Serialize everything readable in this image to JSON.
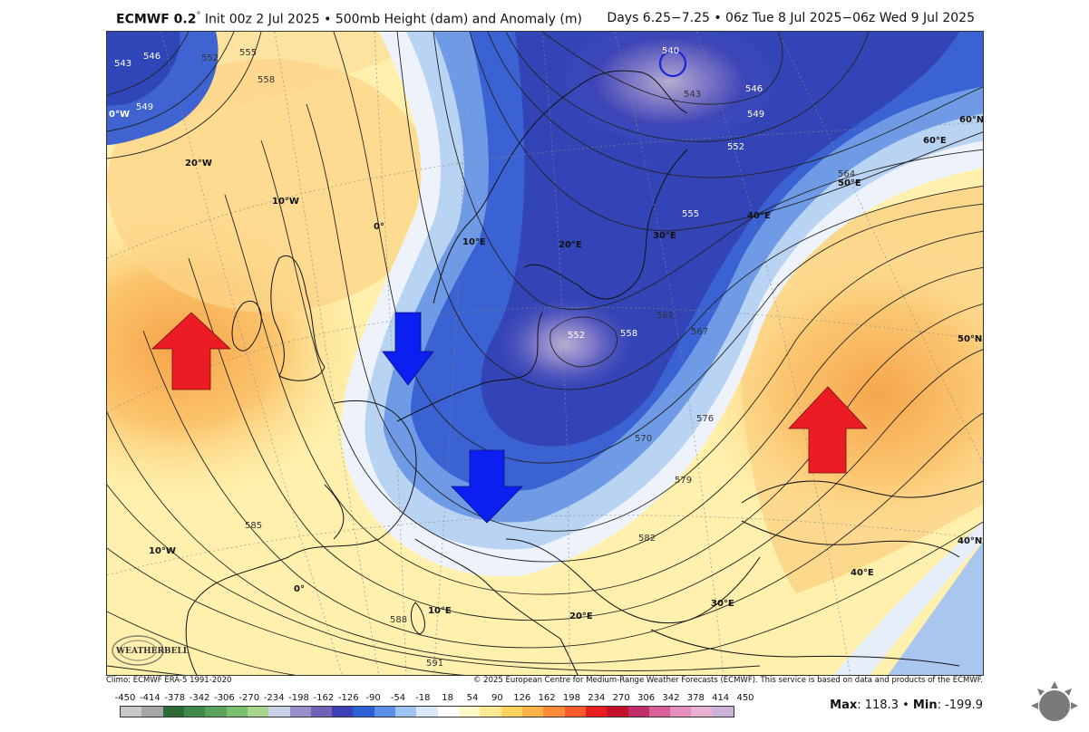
{
  "header": {
    "model": "ECMWF 0.2",
    "degree": "°",
    "init": " Init 00z 2 Jul 2025 • 500mb Height (dam) and Anomaly (m)",
    "valid": "Days 6.25−7.25 • 06z Tue 8 Jul 2025−06z Wed 9 Jul 2025"
  },
  "footer": {
    "climo": "Climo: ECMWF ERA-5 1991-2020",
    "copyright": "© 2025 European Centre for Medium-Range Weather Forecasts (ECMWF). This service is based on data and products of the ECMWF."
  },
  "colorbar": {
    "labels": [
      "-450",
      "-414",
      "-378",
      "-342",
      "-306",
      "-270",
      "-234",
      "-198",
      "-162",
      "-126",
      "-90",
      "-54",
      "-18",
      "18",
      "54",
      "90",
      "126",
      "162",
      "198",
      "234",
      "270",
      "306",
      "342",
      "378",
      "414",
      "450"
    ],
    "colors": [
      "#c8c8c8",
      "#a6a6a6",
      "#2f6b3a",
      "#3f8a4a",
      "#5aa35d",
      "#7bbf6f",
      "#a8d58f",
      "#c9d3e8",
      "#9a8fc9",
      "#6f62b7",
      "#3f3fb7",
      "#2d5fd6",
      "#5a8ee8",
      "#9ec3f2",
      "#d8e8fa",
      "#ffffff",
      "#fff8c8",
      "#ffe993",
      "#ffd25c",
      "#ffb347",
      "#ff8a3a",
      "#ff5a2d",
      "#e81e1e",
      "#c4122a",
      "#c22e69",
      "#d85f98",
      "#e58fbc",
      "#e9b0d2",
      "#ccb2d8"
    ]
  },
  "stats": {
    "max_label": "Max",
    "max_value": ": 118.3",
    "sep": " • ",
    "min_label": "Min",
    "min_value": ": -199.9"
  },
  "logo": {
    "text": "WEATHERBELL"
  },
  "map": {
    "contour_labels": [
      "543",
      "546",
      "549",
      "552",
      "555",
      "558",
      "540",
      "543",
      "546",
      "549",
      "552",
      "555",
      "564",
      "552",
      "558",
      "561",
      "567",
      "570",
      "576",
      "579",
      "582",
      "585",
      "588",
      "591"
    ],
    "graticule_labels": [
      "20°W",
      "10°W",
      "0°",
      "10°E",
      "20°E",
      "30°E",
      "40°E",
      "50°E",
      "60°E",
      "60°N",
      "50°N",
      "40°N",
      "10°W",
      "0°",
      "10°E",
      "20°E",
      "30°E",
      "40°E",
      "0°W"
    ],
    "arrows": [
      {
        "kind": "ridge",
        "color": "#ec1c24"
      },
      {
        "kind": "trough",
        "color": "#0a1ff0"
      },
      {
        "kind": "trough",
        "color": "#0a1ff0"
      },
      {
        "kind": "ridge",
        "color": "#ec1c24"
      }
    ]
  }
}
